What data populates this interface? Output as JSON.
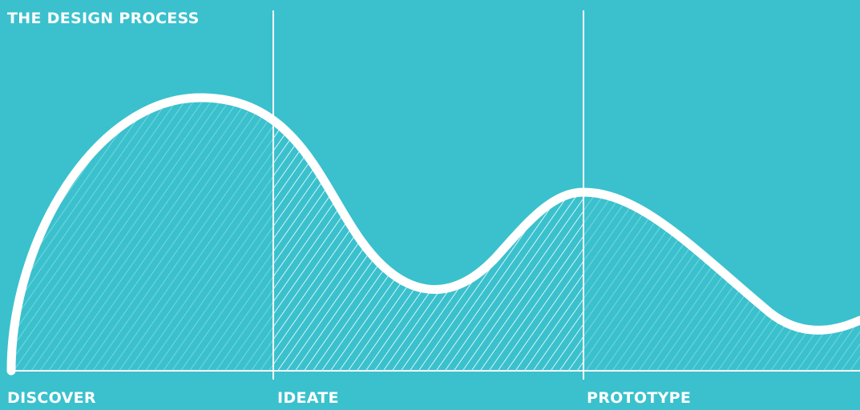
{
  "title": "THE DESIGN PROCESS",
  "phases": [
    {
      "label": "DISCOVER"
    },
    {
      "label": "IDEATE"
    },
    {
      "label": "PROTOTYPE"
    }
  ],
  "colors": {
    "background": "#3ac1cd",
    "line": "#ffffff",
    "hatch_light": "#7fd9e0",
    "hatch_bright": "#ffffff"
  }
}
